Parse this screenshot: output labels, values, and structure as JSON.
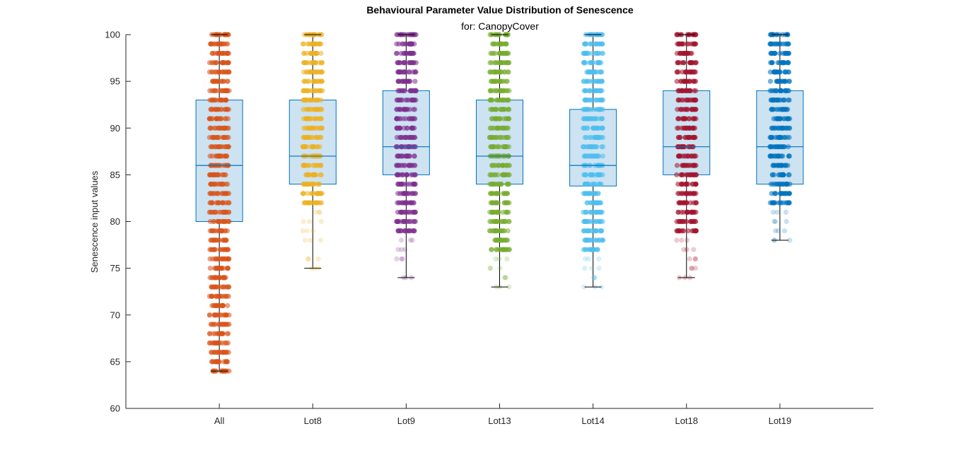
{
  "chart_data": {
    "type": "box",
    "title": "Behavioural Parameter Value Distribution of Senescence",
    "subtitle": "for: CanopyCover",
    "xlabel": "",
    "ylabel": "Senescence input values",
    "ylim": [
      60,
      100
    ],
    "yticks": [
      60,
      65,
      70,
      75,
      80,
      85,
      90,
      95,
      100
    ],
    "grid": false,
    "box_fill": "#cde3f2",
    "box_edge": "#0072bd",
    "whisker_color": "#000000",
    "series": [
      {
        "name": "All",
        "color": "#d95319",
        "q1": 80,
        "median": 86,
        "q3": 93,
        "whisker_low": 64,
        "whisker_high": 100,
        "dense_range": [
          64,
          100
        ],
        "sparse_values": []
      },
      {
        "name": "Lot8",
        "color": "#edb120",
        "q1": 84,
        "median": 87,
        "q3": 93,
        "whisker_low": 75,
        "whisker_high": 100,
        "dense_range": [
          82,
          100
        ],
        "sparse_values": [
          75,
          76,
          78,
          79,
          80,
          81
        ]
      },
      {
        "name": "Lot9",
        "color": "#7e2f8e",
        "q1": 85,
        "median": 88,
        "q3": 94,
        "whisker_low": 74,
        "whisker_high": 100,
        "dense_range": [
          79,
          100
        ],
        "sparse_values": [
          74,
          76,
          77,
          78
        ]
      },
      {
        "name": "Lot13",
        "color": "#77ac30",
        "q1": 84,
        "median": 87,
        "q3": 93,
        "whisker_low": 73,
        "whisker_high": 100,
        "dense_range": [
          77,
          100
        ],
        "sparse_values": [
          73,
          74,
          75,
          76
        ]
      },
      {
        "name": "Lot14",
        "color": "#4dbeee",
        "q1": 83.8,
        "median": 86,
        "q3": 92,
        "whisker_low": 73,
        "whisker_high": 100,
        "dense_range": [
          77,
          100
        ],
        "sparse_values": [
          73,
          74,
          75,
          76
        ]
      },
      {
        "name": "Lot18",
        "color": "#a2142f",
        "q1": 85,
        "median": 88,
        "q3": 94,
        "whisker_low": 74,
        "whisker_high": 100,
        "dense_range": [
          79,
          100
        ],
        "sparse_values": [
          74,
          75,
          76,
          77,
          78
        ]
      },
      {
        "name": "Lot19",
        "color": "#0072bd",
        "q1": 84,
        "median": 88,
        "q3": 94,
        "whisker_low": 78,
        "whisker_high": 100,
        "dense_range": [
          82,
          100
        ],
        "sparse_values": [
          78,
          79,
          80,
          81
        ]
      }
    ]
  }
}
